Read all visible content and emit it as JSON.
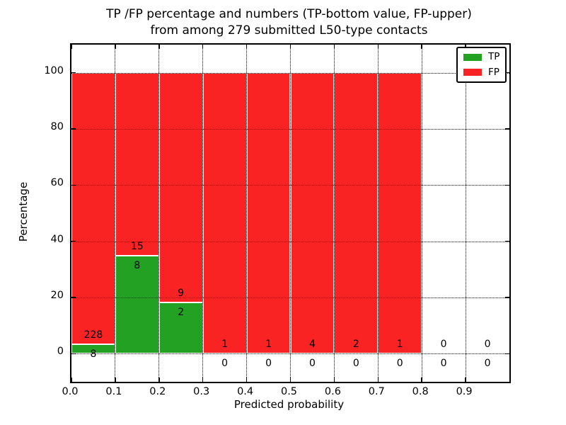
{
  "title": {
    "line1": "TP /FP percentage and numbers (TP-bottom value, FP-upper)",
    "line2": "from among 279 submitted L50-type contacts"
  },
  "axes": {
    "xlabel": "Predicted probability",
    "ylabel": "Percentage"
  },
  "legend": {
    "position": "upper right",
    "entries": [
      {
        "label": "TP",
        "color": "#22a122"
      },
      {
        "label": "FP",
        "color": "#f92323"
      }
    ]
  },
  "colors": {
    "tp": "#22a122",
    "fp": "#f92323",
    "grid": "#000000",
    "frame": "#000000",
    "background": "#ffffff",
    "bar_edge": "#ffffff"
  },
  "chart_data": {
    "type": "bar",
    "stacked": true,
    "normalized_to_percent": true,
    "title": "TP /FP percentage and numbers (TP-bottom value, FP-upper) from among 279 submitted L50-type contacts",
    "xlabel": "Predicted probability",
    "ylabel": "Percentage",
    "xlim": [
      0.0,
      1.0
    ],
    "ylim": [
      -10,
      110
    ],
    "xticks": [
      "0.0",
      "0.1",
      "0.2",
      "0.3",
      "0.4",
      "0.5",
      "0.6",
      "0.7",
      "0.8",
      "0.9"
    ],
    "yticks": [
      0,
      20,
      40,
      60,
      80,
      100
    ],
    "grid": "dotted, both axes, drawn above bars",
    "legend_position": "upper right",
    "total_contacts": 279,
    "bin_edges": [
      0.0,
      0.1,
      0.2,
      0.3,
      0.4,
      0.5,
      0.6,
      0.7,
      0.8,
      0.9,
      1.0
    ],
    "series": [
      {
        "name": "TP",
        "color": "#22a122",
        "counts": [
          8,
          8,
          2,
          0,
          0,
          0,
          0,
          0,
          0,
          0
        ]
      },
      {
        "name": "FP",
        "color": "#f92323",
        "counts": [
          228,
          15,
          9,
          1,
          1,
          4,
          2,
          1,
          0,
          0
        ]
      }
    ],
    "tp_percent": [
      3.39,
      34.78,
      18.18,
      0,
      0,
      0,
      0,
      0,
      0,
      0
    ],
    "fp_percent": [
      96.61,
      65.22,
      81.82,
      100,
      100,
      100,
      100,
      100,
      0,
      0
    ],
    "label_convention": "FP count printed above the TP/FP boundary, TP count printed below it"
  }
}
